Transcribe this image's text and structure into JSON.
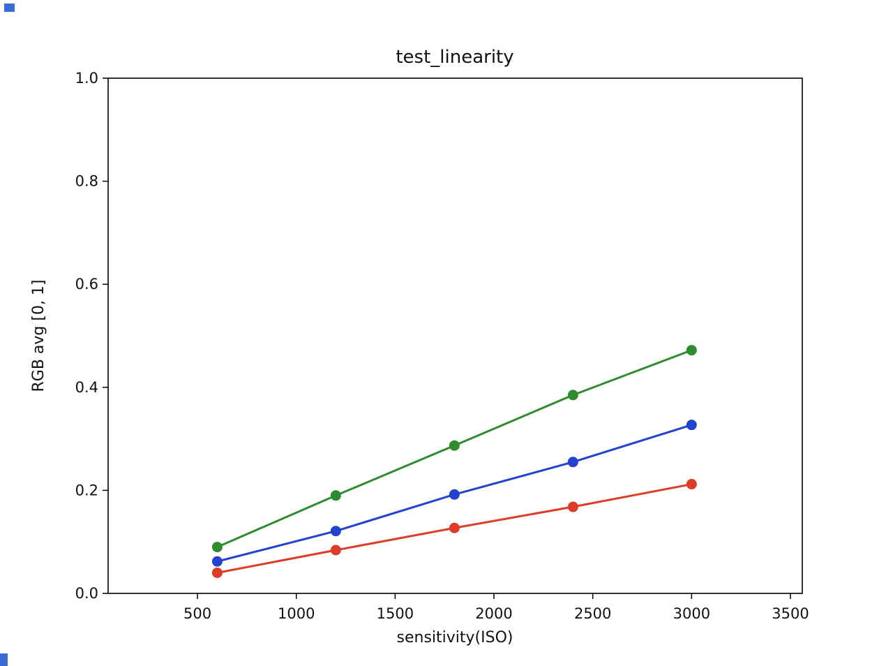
{
  "figure": {
    "background_color": "#ffffff",
    "axis_color": "#000000",
    "text_color": "#111111",
    "artifact_color": "#3a6cd8"
  },
  "chart_data": {
    "type": "line",
    "title": "test_linearity",
    "xlabel": "sensitivity(ISO)",
    "ylabel": "RGB avg [0, 1]",
    "xlim": [
      48,
      3560
    ],
    "ylim": [
      0,
      1.0
    ],
    "grid": false,
    "legend": null,
    "marker": "o",
    "x_ticks": {
      "values": [
        500,
        1000,
        1500,
        2000,
        2500,
        3000,
        3500
      ],
      "labels": [
        "500",
        "1000",
        "1500",
        "2000",
        "2500",
        "3000",
        "3500"
      ]
    },
    "y_ticks": {
      "values": [
        0.0,
        0.2,
        0.4,
        0.6,
        0.8,
        1.0
      ],
      "labels": [
        "0.0",
        "0.2",
        "0.4",
        "0.6",
        "0.8",
        "1.0"
      ]
    },
    "x": [
      600,
      1200,
      1800,
      2400,
      3000
    ],
    "series": [
      {
        "name": "green",
        "color": "#2e8b2e",
        "values": [
          0.09,
          0.19,
          0.287,
          0.385,
          0.472
        ]
      },
      {
        "name": "blue",
        "color": "#2242cf",
        "values": [
          0.062,
          0.121,
          0.192,
          0.255,
          0.327
        ]
      },
      {
        "name": "red",
        "color": "#de3b28",
        "values": [
          0.04,
          0.084,
          0.127,
          0.168,
          0.212
        ]
      }
    ]
  }
}
